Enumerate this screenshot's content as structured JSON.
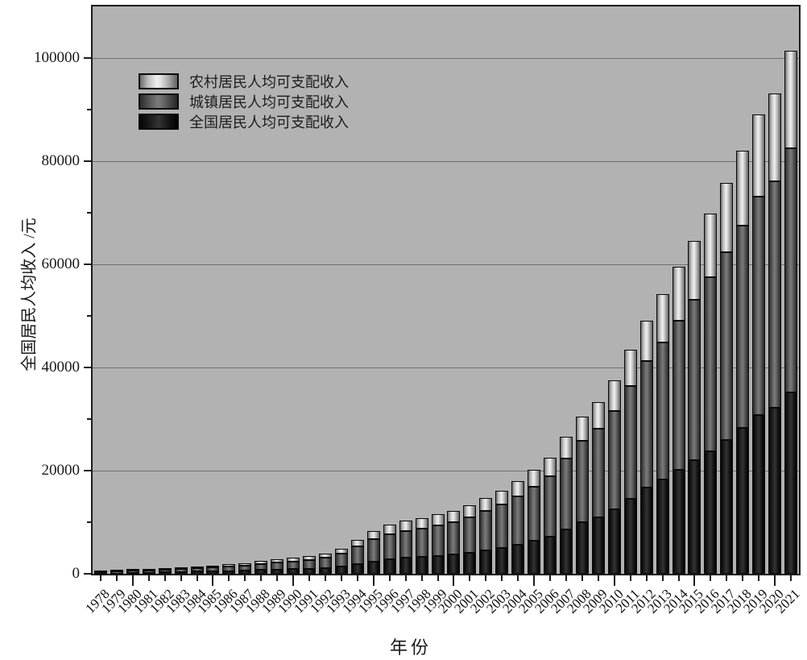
{
  "chart_data": {
    "type": "bar",
    "stacked": true,
    "title": "",
    "xlabel": "年份",
    "ylabel": "全国居民人均收入 /元",
    "ylim": [
      0,
      110000
    ],
    "yticks_major": [
      0,
      20000,
      40000,
      60000,
      80000,
      100000
    ],
    "yticks_minor": [
      10000,
      30000,
      50000,
      70000,
      90000
    ],
    "xticks_major_years": [
      1980,
      1985,
      1990,
      1995,
      2000,
      2005,
      2010,
      2015,
      2020
    ],
    "grid": "horizontal-major",
    "legend_position": "upper-left-inside",
    "categories": [
      1978,
      1979,
      1980,
      1981,
      1982,
      1983,
      1984,
      1985,
      1986,
      1987,
      1988,
      1989,
      1990,
      1991,
      1992,
      1993,
      1994,
      1995,
      1996,
      1997,
      1998,
      1999,
      2000,
      2001,
      2002,
      2003,
      2004,
      2005,
      2006,
      2007,
      2008,
      2009,
      2010,
      2011,
      2012,
      2013,
      2014,
      2015,
      2016,
      2017,
      2018,
      2019,
      2020,
      2021
    ],
    "series": [
      {
        "name": "全国居民人均可支配收入",
        "key": "national",
        "stack_order": "bottom",
        "values": [
          171,
          207,
          247,
          279,
          326,
          365,
          423,
          479,
          540,
          598,
          708,
          804,
          904,
          976,
          1125,
          1386,
          1872,
          2362,
          2812,
          3066,
          3249,
          3474,
          3710,
          4060,
          4520,
          4991,
          5647,
          6367,
          7215,
          8568,
          9940,
          10960,
          12501,
          14586,
          16658,
          18311,
          20167,
          21966,
          23821,
          25974,
          28228,
          30733,
          32189,
          35128
        ]
      },
      {
        "name": "城镇居民人均可支配收入",
        "key": "urban",
        "stack_order": "middle",
        "values": [
          343,
          405,
          478,
          500,
          535,
          565,
          652,
          739,
          901,
          1002,
          1180,
          1374,
          1510,
          1701,
          2027,
          2577,
          3496,
          4283,
          4839,
          5160,
          5425,
          5854,
          6280,
          6860,
          7703,
          8472,
          9422,
          10493,
          11760,
          13786,
          15781,
          17175,
          19109,
          21810,
          24565,
          26467,
          28844,
          31195,
          33616,
          36396,
          39251,
          42359,
          43834,
          47412
        ]
      },
      {
        "name": "农村居民人均可支配收入",
        "key": "rural",
        "stack_order": "top",
        "values": [
          134,
          160,
          191,
          223,
          270,
          310,
          355,
          398,
          424,
          463,
          545,
          602,
          686,
          709,
          784,
          922,
          1221,
          1578,
          1926,
          2090,
          2162,
          2210,
          2253,
          2366,
          2476,
          2622,
          2936,
          3255,
          3587,
          4140,
          4761,
          5153,
          5919,
          6977,
          7917,
          9430,
          10489,
          11422,
          12363,
          13432,
          14617,
          16021,
          17131,
          18931
        ]
      }
    ]
  },
  "legend": {
    "items": [
      {
        "label": "农村居民人均可支配收入",
        "series": "rural"
      },
      {
        "label": "城镇居民人均可支配收入",
        "series": "urban"
      },
      {
        "label": "全国居民人均可支配收入",
        "series": "national"
      }
    ]
  },
  "colors": {
    "plot_background": "#b2b2b2",
    "gridline": "#6e6e6e",
    "frame": "#1c1c1c",
    "national_bar": "#151515",
    "urban_bar": "#5f5f5f",
    "rural_bar": "#cfcfcf"
  }
}
